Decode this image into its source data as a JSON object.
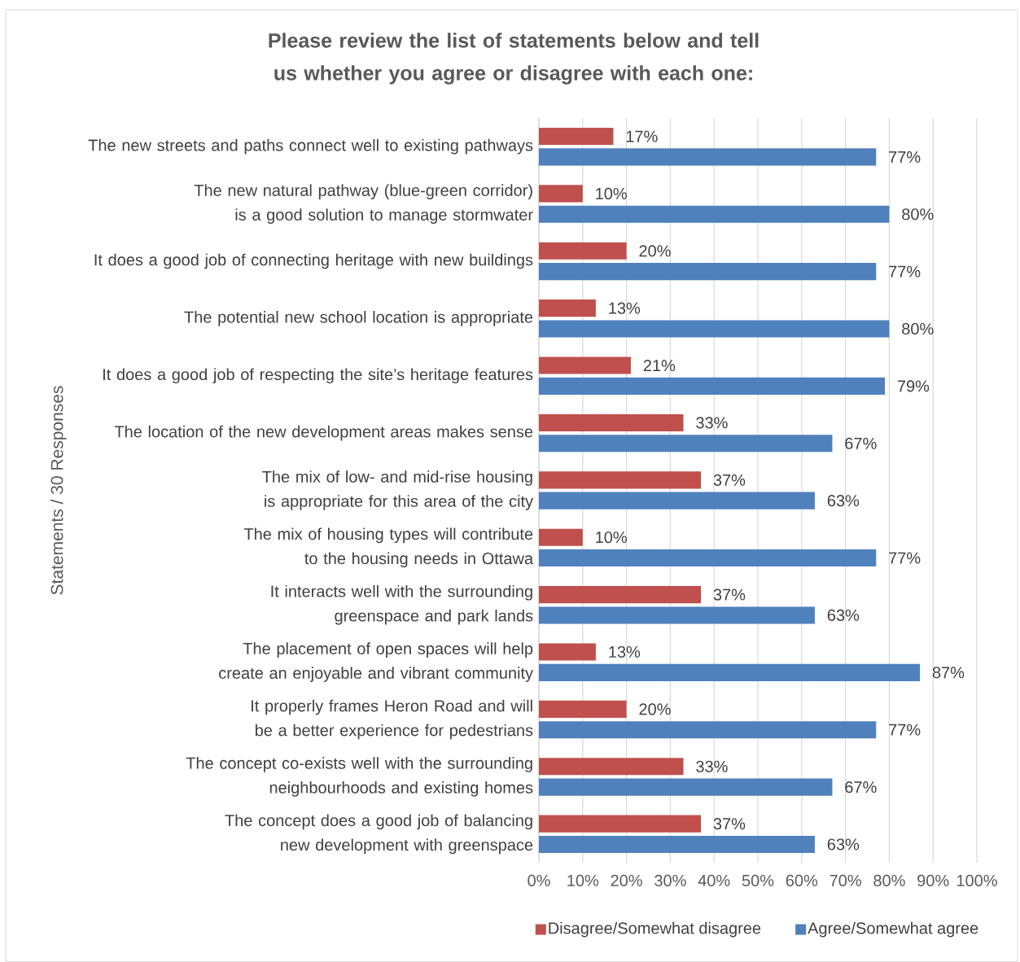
{
  "chart_data": {
    "type": "bar",
    "orientation": "horizontal",
    "title": "Please review the list of statements below and tell us whether you agree or disagree with each one:",
    "ylabel": "Statements / 30 Responses",
    "categories": [
      "The new streets and paths connect well to existing pathways",
      "The new natural pathway (blue-green corridor) is a good solution to manage stormwater",
      "It does a good job of connecting heritage with new buildings",
      "The potential new school location is appropriate",
      "It does a good job of respecting the site’s heritage features",
      "The location of the new development areas makes sense",
      "The mix of low- and mid-rise housing is appropriate for this area of the city",
      "The mix of housing types will contribute to the housing needs in Ottawa",
      "It interacts well with the surrounding greenspace and park lands",
      "The placement of open spaces will help create an enjoyable and vibrant community",
      "It properly frames Heron Road and will be a better experience for pedestrians",
      "The concept co-exists well with the surrounding neighbourhoods and existing homes",
      "The concept does a good job of balancing new development with greenspace"
    ],
    "series": [
      {
        "name": "Disagree/Somewhat disagree",
        "color": "#c0504d",
        "values": [
          17,
          10,
          20,
          13,
          21,
          33,
          37,
          10,
          37,
          13,
          20,
          33,
          37
        ],
        "value_labels": [
          "17%",
          "10%",
          "20%",
          "13%",
          "21%",
          "33%",
          "37%",
          "10%",
          "37%",
          "13%",
          "20%",
          "33%",
          "37%"
        ]
      },
      {
        "name": "Agree/Somewhat agree",
        "color": "#4f81bd",
        "values": [
          77,
          80,
          77,
          80,
          79,
          67,
          63,
          77,
          63,
          87,
          77,
          67,
          63
        ],
        "value_labels": [
          "77%",
          "80%",
          "77%",
          "80%",
          "79%",
          "67%",
          "63%",
          "77%",
          "63%",
          "87%",
          "77%",
          "67%",
          "63%"
        ]
      }
    ],
    "xlim": [
      0,
      100
    ],
    "xticks": [
      {
        "value": 0,
        "label": "0%"
      },
      {
        "value": 10,
        "label": "10%"
      },
      {
        "value": 20,
        "label": "20%"
      },
      {
        "value": 30,
        "label": "30%"
      },
      {
        "value": 40,
        "label": "40%"
      },
      {
        "value": 50,
        "label": "50%"
      },
      {
        "value": 60,
        "label": "60%"
      },
      {
        "value": 70,
        "label": "70%"
      },
      {
        "value": 80,
        "label": "80%"
      },
      {
        "value": 90,
        "label": "90%"
      },
      {
        "value": 100,
        "label": "100%"
      }
    ],
    "grid": "x",
    "legend": "bottom"
  }
}
